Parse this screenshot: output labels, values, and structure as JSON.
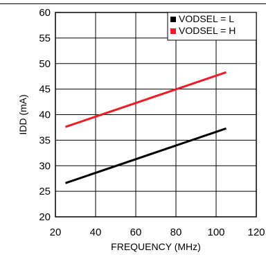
{
  "chart_data": {
    "type": "line",
    "xlabel": "FREQUENCY (MHz)",
    "ylabel": "IDD (mA)",
    "xlim": [
      20,
      120
    ],
    "ylim": [
      20,
      60
    ],
    "xticks": [
      20,
      40,
      60,
      80,
      100,
      120
    ],
    "yticks": [
      20,
      25,
      30,
      35,
      40,
      45,
      50,
      55,
      60
    ],
    "grid": true,
    "legend": "top-right",
    "series": [
      {
        "name": "VODSEL = L",
        "color": "#000000",
        "x": [
          25,
          105
        ],
        "y": [
          26.6,
          37.3
        ]
      },
      {
        "name": "VODSEL = H",
        "color": "#ee1c24",
        "x": [
          25,
          105
        ],
        "y": [
          37.6,
          48.3
        ]
      }
    ]
  }
}
